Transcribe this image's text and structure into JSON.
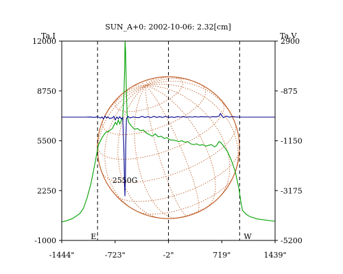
{
  "chart_data": {
    "type": "line",
    "title": "SUN_A+0: 2002-10-06: 2.32[cm]",
    "left_axis_label": "Ta,I",
    "right_axis_label": "Ta,V",
    "x_range": [
      -1444,
      1439
    ],
    "x_ticks": [
      {
        "value": -1444,
        "label": "-1444\""
      },
      {
        "value": -723,
        "label": "-723\""
      },
      {
        "value": -2,
        "label": "-2\""
      },
      {
        "value": 719,
        "label": "719\""
      },
      {
        "value": 1439,
        "label": "1439\""
      }
    ],
    "left_range": [
      -1000,
      12000
    ],
    "left_ticks": [
      {
        "value": 12000,
        "label": "12000"
      },
      {
        "value": 8750,
        "label": "8750"
      },
      {
        "value": 5500,
        "label": "5500"
      },
      {
        "value": 2250,
        "label": "2250"
      },
      {
        "value": -1000,
        "label": "-1000"
      }
    ],
    "right_range": [
      -5200,
      2900
    ],
    "right_ticks": [
      {
        "value": 2900,
        "label": "2900"
      },
      {
        "value": -875,
        "label": "-875"
      },
      {
        "value": -1150,
        "label": "-1150"
      },
      {
        "value": -3175,
        "label": "-3175"
      },
      {
        "value": -5200,
        "label": "-5200"
      }
    ],
    "limb_markers": [
      {
        "value": -960,
        "label": "E"
      },
      {
        "value": 960,
        "label": "W"
      }
    ],
    "annotation": {
      "text": "2550G",
      "x": -590,
      "y_left": 2750
    },
    "series": [
      {
        "axis": "left",
        "color": "#00a000",
        "points": [
          [
            -1444,
            200
          ],
          [
            -1380,
            280
          ],
          [
            -1300,
            420
          ],
          [
            -1200,
            750
          ],
          [
            -1150,
            1100
          ],
          [
            -1100,
            1800
          ],
          [
            -1050,
            2700
          ],
          [
            -1000,
            3900
          ],
          [
            -950,
            5200
          ],
          [
            -900,
            5700
          ],
          [
            -850,
            6050
          ],
          [
            -800,
            6150
          ],
          [
            -760,
            6300
          ],
          [
            -720,
            6700
          ],
          [
            -700,
            6550
          ],
          [
            -680,
            6850
          ],
          [
            -660,
            6600
          ],
          [
            -640,
            6800
          ],
          [
            -620,
            7050
          ],
          [
            -605,
            8300
          ],
          [
            -595,
            10000
          ],
          [
            -588,
            12000
          ],
          [
            -582,
            11400
          ],
          [
            -576,
            10200
          ],
          [
            -570,
            8600
          ],
          [
            -560,
            7150
          ],
          [
            -540,
            6700
          ],
          [
            -500,
            6450
          ],
          [
            -460,
            6250
          ],
          [
            -420,
            6300
          ],
          [
            -380,
            6150
          ],
          [
            -340,
            6200
          ],
          [
            -300,
            6000
          ],
          [
            -260,
            5900
          ],
          [
            -220,
            5800
          ],
          [
            -180,
            5950
          ],
          [
            -140,
            5750
          ],
          [
            -100,
            5800
          ],
          [
            -60,
            5650
          ],
          [
            -20,
            5700
          ],
          [
            20,
            5550
          ],
          [
            60,
            5550
          ],
          [
            100,
            5500
          ],
          [
            140,
            5450
          ],
          [
            180,
            5500
          ],
          [
            220,
            5400
          ],
          [
            260,
            5450
          ],
          [
            300,
            5300
          ],
          [
            340,
            5250
          ],
          [
            380,
            5300
          ],
          [
            420,
            5200
          ],
          [
            460,
            5250
          ],
          [
            500,
            5150
          ],
          [
            540,
            5200
          ],
          [
            580,
            5250
          ],
          [
            620,
            5100
          ],
          [
            650,
            5200
          ],
          [
            680,
            5450
          ],
          [
            700,
            5400
          ],
          [
            720,
            5300
          ],
          [
            760,
            5050
          ],
          [
            800,
            4750
          ],
          [
            850,
            4200
          ],
          [
            900,
            3500
          ],
          [
            950,
            2400
          ],
          [
            980,
            1400
          ],
          [
            1000,
            950
          ],
          [
            1050,
            700
          ],
          [
            1100,
            550
          ],
          [
            1200,
            400
          ],
          [
            1300,
            330
          ],
          [
            1439,
            250
          ]
        ]
      },
      {
        "axis": "right",
        "color": "#00008b",
        "points": [
          [
            -1444,
            -190
          ],
          [
            -1300,
            -190
          ],
          [
            -1150,
            -190
          ],
          [
            -1050,
            -185
          ],
          [
            -1000,
            -200
          ],
          [
            -960,
            -170
          ],
          [
            -920,
            -230
          ],
          [
            -900,
            -180
          ],
          [
            -880,
            -260
          ],
          [
            -860,
            -150
          ],
          [
            -840,
            -220
          ],
          [
            -820,
            -180
          ],
          [
            -800,
            -240
          ],
          [
            -760,
            -220
          ],
          [
            -740,
            -160
          ],
          [
            -720,
            -300
          ],
          [
            -700,
            -180
          ],
          [
            -680,
            -250
          ],
          [
            -660,
            -170
          ],
          [
            -640,
            -260
          ],
          [
            -620,
            -200
          ],
          [
            -605,
            -1400
          ],
          [
            -596,
            -2800
          ],
          [
            -590,
            -3400
          ],
          [
            -584,
            -2600
          ],
          [
            -578,
            -1200
          ],
          [
            -570,
            -250
          ],
          [
            -550,
            -160
          ],
          [
            -520,
            -220
          ],
          [
            -480,
            -180
          ],
          [
            -440,
            -200
          ],
          [
            -400,
            -210
          ],
          [
            -360,
            -160
          ],
          [
            -320,
            -200
          ],
          [
            -280,
            -170
          ],
          [
            -240,
            -210
          ],
          [
            -200,
            -160
          ],
          [
            -160,
            -200
          ],
          [
            -120,
            -170
          ],
          [
            -80,
            -200
          ],
          [
            -40,
            -160
          ],
          [
            0,
            -200
          ],
          [
            40,
            -180
          ],
          [
            80,
            -200
          ],
          [
            120,
            -170
          ],
          [
            160,
            -190
          ],
          [
            200,
            -170
          ],
          [
            240,
            -195
          ],
          [
            280,
            -175
          ],
          [
            320,
            -190
          ],
          [
            360,
            -170
          ],
          [
            400,
            -190
          ],
          [
            440,
            -170
          ],
          [
            480,
            -180
          ],
          [
            520,
            -175
          ],
          [
            560,
            -190
          ],
          [
            600,
            -170
          ],
          [
            640,
            -180
          ],
          [
            680,
            -150
          ],
          [
            700,
            -40
          ],
          [
            715,
            -110
          ],
          [
            740,
            -210
          ],
          [
            780,
            -150
          ],
          [
            820,
            -190
          ],
          [
            860,
            -170
          ],
          [
            900,
            -180
          ],
          [
            950,
            -190
          ],
          [
            1000,
            -190
          ],
          [
            1100,
            -190
          ],
          [
            1250,
            -190
          ],
          [
            1439,
            -190
          ]
        ]
      }
    ],
    "solar_disk": {
      "center_x": -2,
      "center_y_left": 5050,
      "radius_arcsec": 960,
      "color": "#c0602a"
    },
    "grid": false
  }
}
